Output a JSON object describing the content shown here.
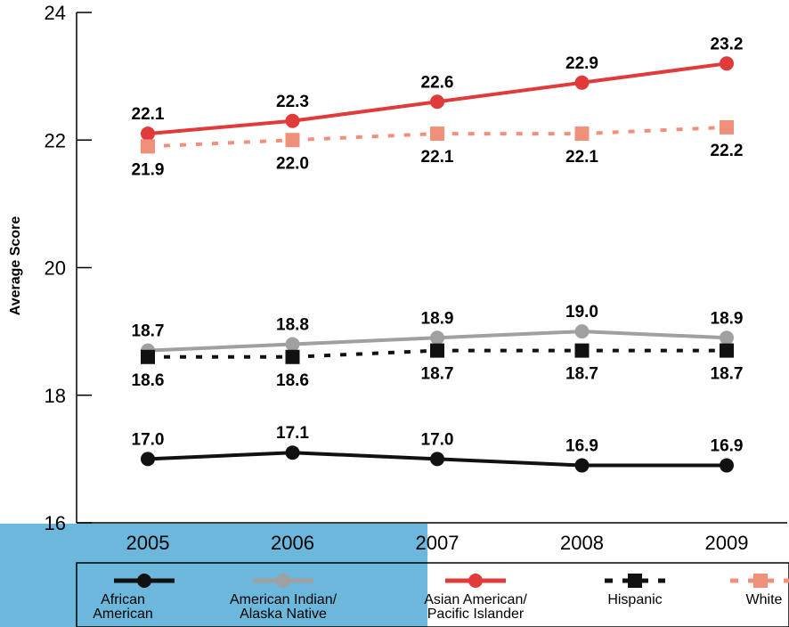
{
  "chart_data": {
    "type": "line",
    "xlabel": "",
    "ylabel": "Average Score",
    "ylim": [
      16,
      24
    ],
    "yticks": [
      "16",
      "18",
      "20",
      "22",
      "24"
    ],
    "categories": [
      "2005",
      "2006",
      "2007",
      "2008",
      "2009"
    ],
    "label_position": "above",
    "grid": false,
    "legend_position": "bottom",
    "series": [
      {
        "name": "African American",
        "legend_lines": [
          "African",
          "American"
        ],
        "values": [
          17.0,
          17.1,
          17.0,
          16.9,
          16.9
        ],
        "labels": [
          "17.0",
          "17.1",
          "17.0",
          "16.9",
          "16.9"
        ],
        "color": "#111111",
        "style": "solid",
        "marker": "circle",
        "label_pos": "above"
      },
      {
        "name": "American Indian/ Alaska Native",
        "legend_lines": [
          "American Indian/",
          "Alaska Native"
        ],
        "values": [
          18.7,
          18.8,
          18.9,
          19.0,
          18.9
        ],
        "labels": [
          "18.7",
          "18.8",
          "18.9",
          "19.0",
          "18.9"
        ],
        "color": "#a0a0a0",
        "style": "solid",
        "marker": "circle",
        "label_pos": "above"
      },
      {
        "name": "Asian American/ Pacific Islander",
        "legend_lines": [
          "Asian American/",
          "Pacific Islander"
        ],
        "values": [
          22.1,
          22.3,
          22.6,
          22.9,
          23.2
        ],
        "labels": [
          "22.1",
          "22.3",
          "22.6",
          "22.9",
          "23.2"
        ],
        "color": "#e03a3a",
        "style": "solid",
        "marker": "circle",
        "label_pos": "above"
      },
      {
        "name": "Hispanic",
        "legend_lines": [
          "Hispanic"
        ],
        "values": [
          18.6,
          18.6,
          18.7,
          18.7,
          18.7
        ],
        "labels": [
          "18.6",
          "18.6",
          "18.7",
          "18.7",
          "18.7"
        ],
        "color": "#111111",
        "style": "dotted",
        "marker": "square",
        "label_pos": "below"
      },
      {
        "name": "White",
        "legend_lines": [
          "White"
        ],
        "values": [
          21.9,
          22.0,
          22.1,
          22.1,
          22.2
        ],
        "labels": [
          "21.9",
          "22.0",
          "22.1",
          "22.1",
          "22.2"
        ],
        "color": "#f0907a",
        "style": "dotted",
        "marker": "square",
        "label_pos": "below"
      }
    ]
  }
}
